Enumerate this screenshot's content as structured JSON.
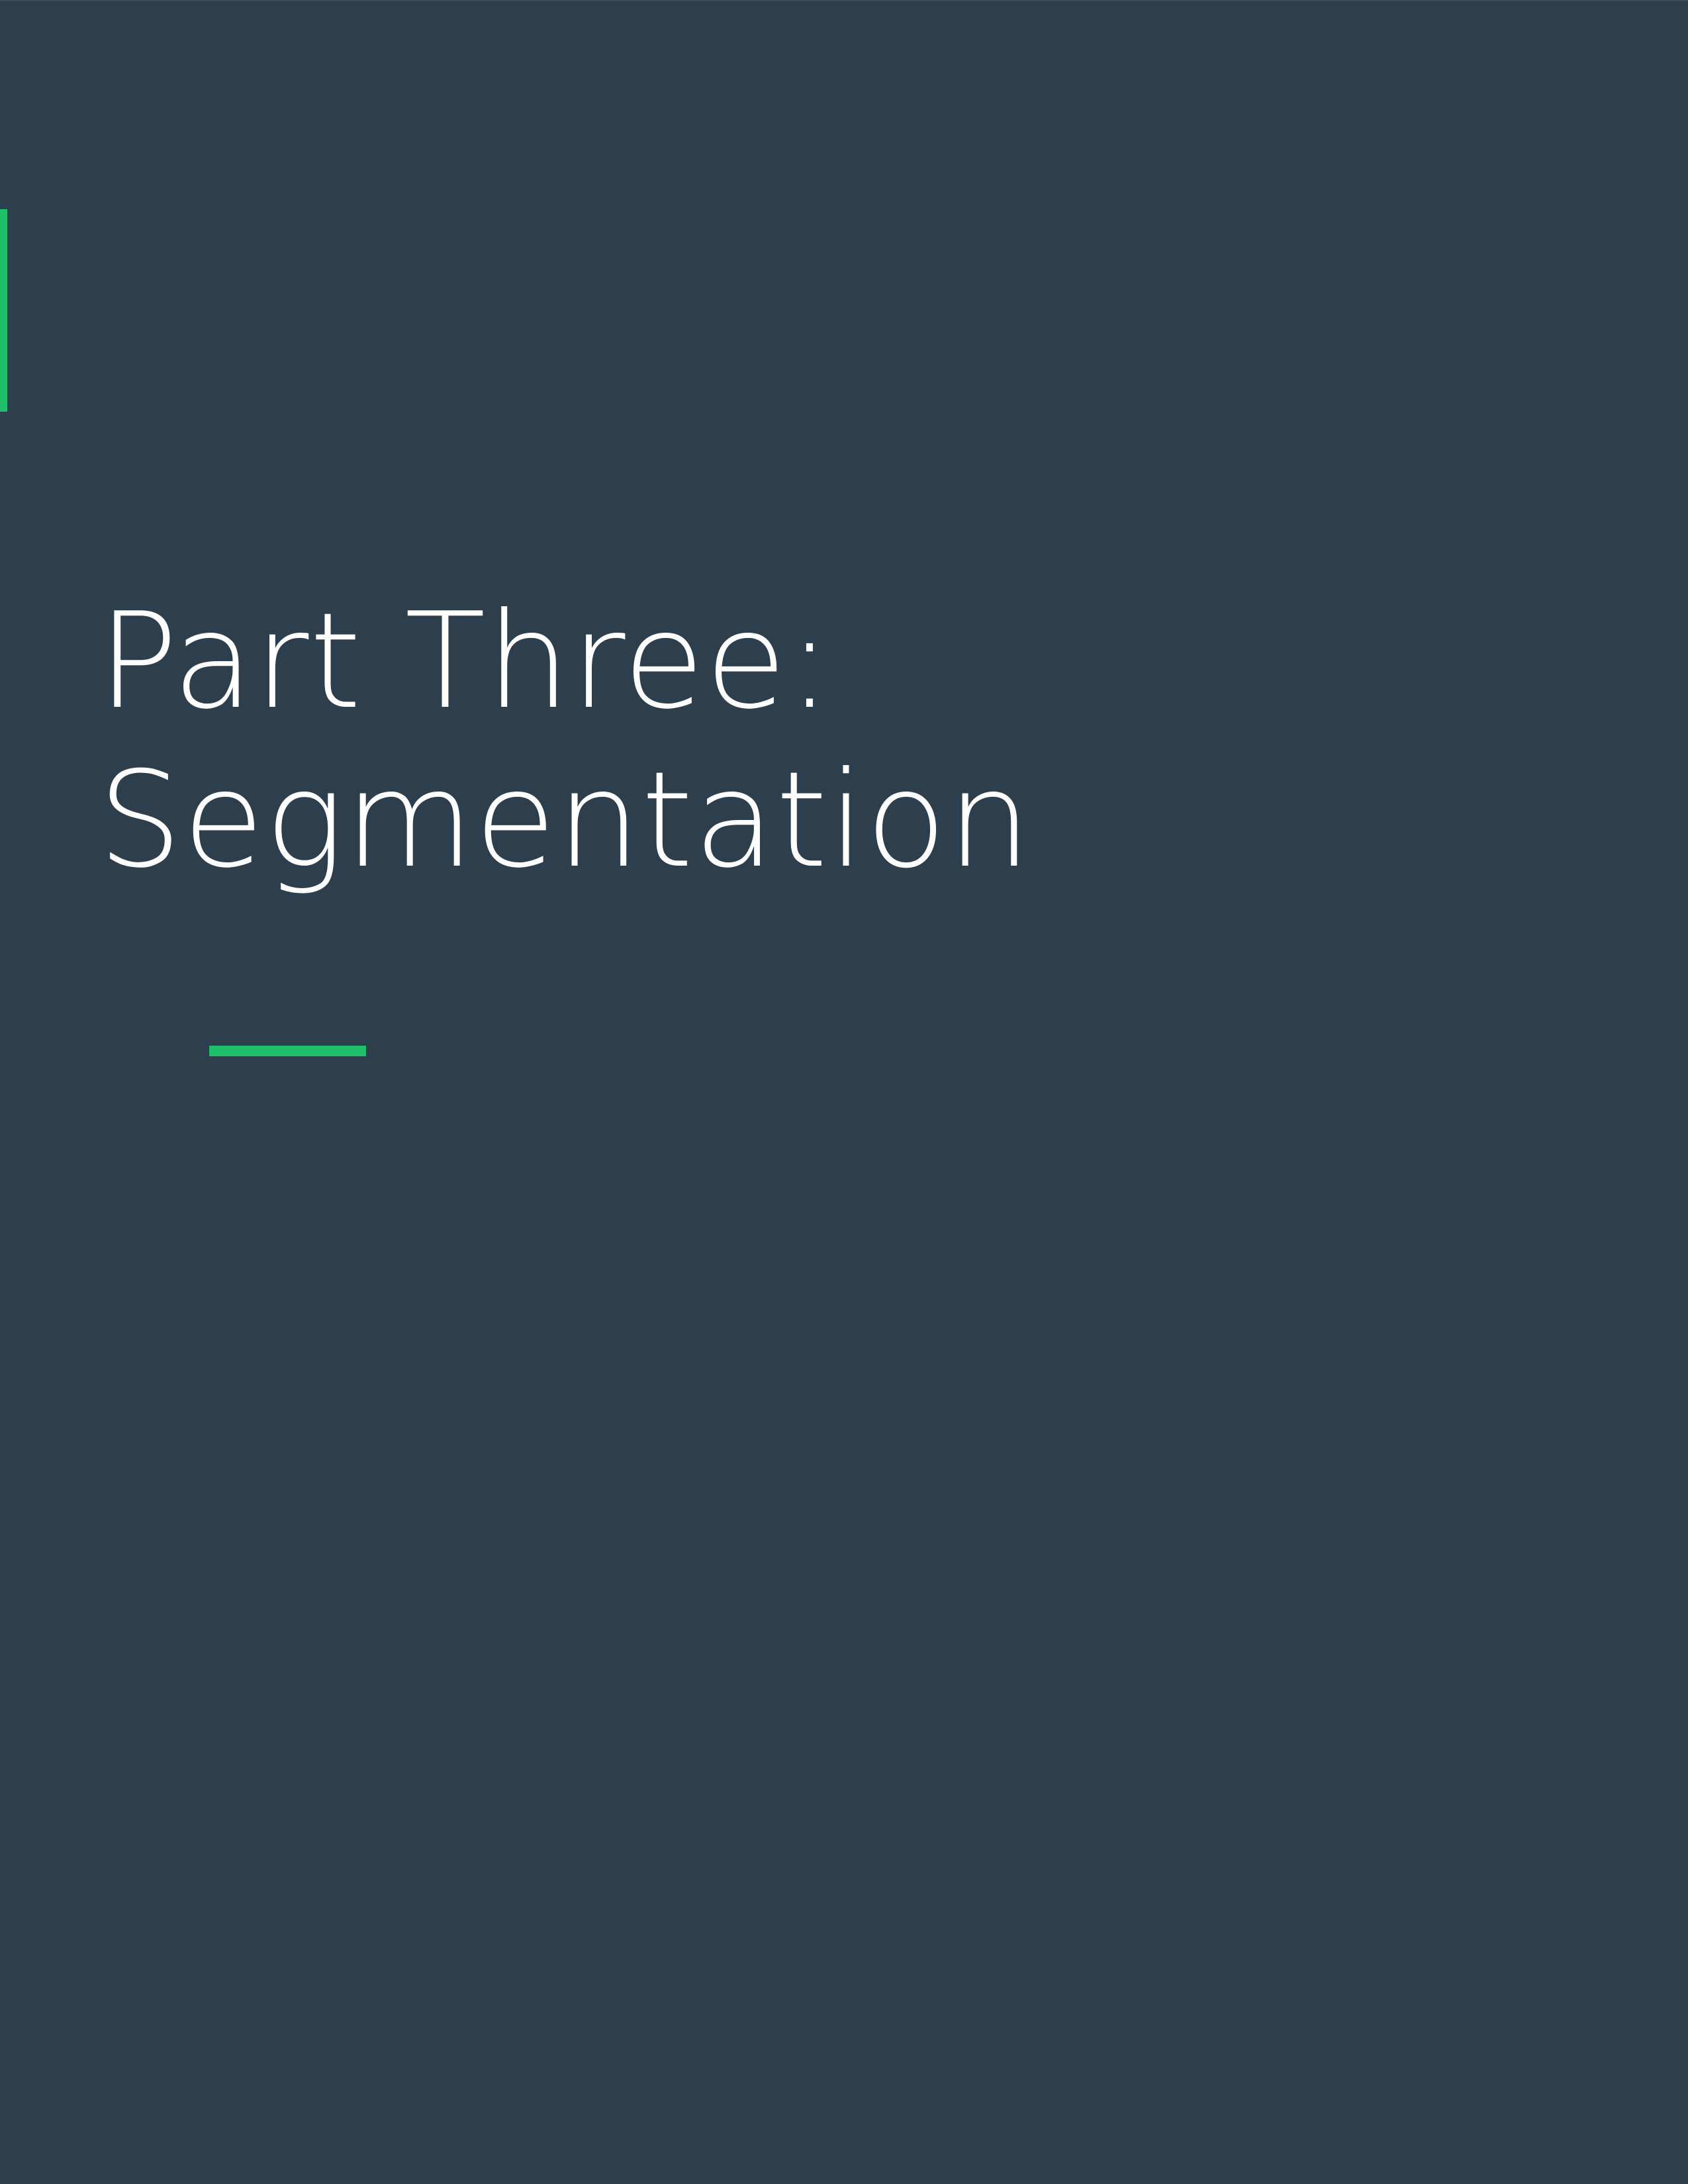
{
  "title": {
    "line1": "Part Three:",
    "line2": "Segmentation"
  },
  "colors": {
    "background": "#2d3e4d",
    "accent": "#1fbf6c",
    "text": "#ffffff"
  }
}
